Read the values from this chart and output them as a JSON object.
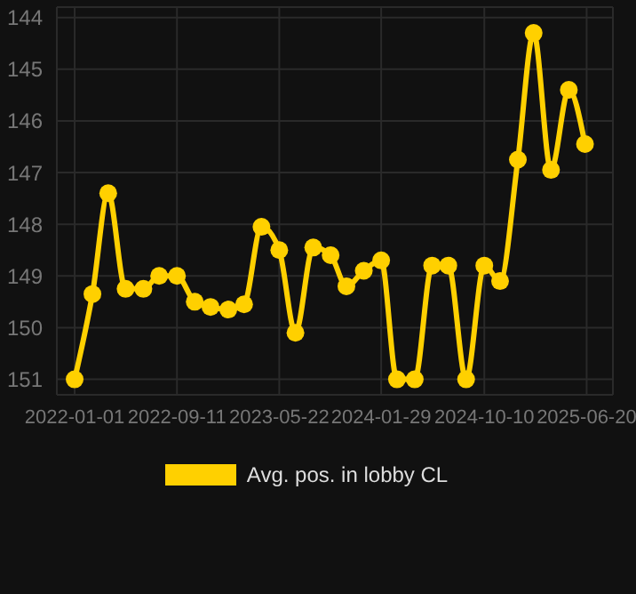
{
  "chart_data": {
    "type": "line",
    "x": [
      "2022-01-01",
      "2022-02-14",
      "2022-03-25",
      "2022-05-07",
      "2022-06-20",
      "2022-07-29",
      "2022-09-11",
      "2022-10-25",
      "2022-12-03",
      "2023-01-16",
      "2023-02-24",
      "2023-04-08",
      "2023-05-22",
      "2023-07-01",
      "2023-08-14",
      "2023-09-26",
      "2023-11-04",
      "2023-12-17",
      "2024-01-29",
      "2024-03-08",
      "2024-04-21",
      "2024-06-03",
      "2024-07-13",
      "2024-08-26",
      "2024-10-10",
      "2024-11-18",
      "2025-01-01",
      "2025-02-09",
      "2025-03-24",
      "2025-05-07",
      "2025-06-16"
    ],
    "series": [
      {
        "name": "Avg. pos. in lobby CL",
        "color": "#ffd000",
        "values": [
          151,
          149.35,
          147.4,
          149.25,
          149.25,
          149,
          149,
          149.5,
          149.6,
          149.65,
          149.55,
          148.05,
          148.5,
          150.1,
          148.45,
          148.6,
          149.2,
          148.9,
          148.7,
          151,
          151,
          148.8,
          148.8,
          151,
          148.8,
          149.1,
          146.75,
          144.3,
          146.95,
          145.4,
          146.45
        ]
      }
    ],
    "xlim": [
      "2021-11-18",
      "2025-08-24"
    ],
    "xticks": [
      "2022-01-01",
      "2022-09-11",
      "2023-05-22",
      "2024-01-29",
      "2024-10-10",
      "2025-06-20"
    ],
    "ylim": [
      151.3,
      143.8
    ],
    "yticks": [
      144,
      145,
      146,
      147,
      148,
      149,
      150,
      151
    ],
    "grid": true,
    "legend": "bottom",
    "marker": "circle",
    "line_style": "solid"
  }
}
